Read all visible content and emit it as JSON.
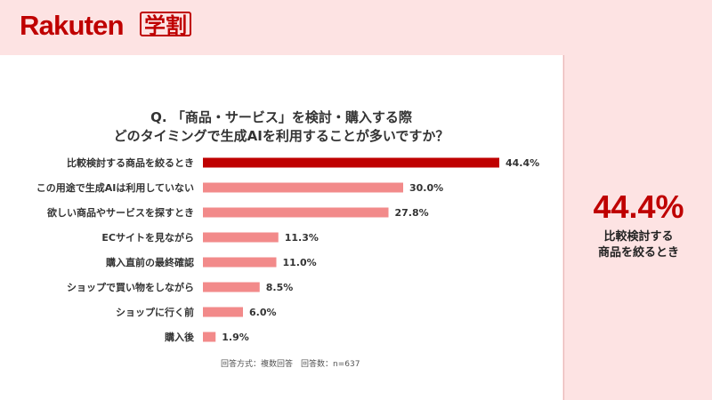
{
  "brand": {
    "logo_text": "Rakuten",
    "logo_badge": "学割",
    "accent": "#bf0000"
  },
  "question": {
    "line1": "Q. 「商品・サービス」を検討・購入する際",
    "line2": "どのタイミングで生成AIを利用することが多いですか？"
  },
  "footnote": "回答方式：複数回答　回答数：n=637",
  "highlight": {
    "value": "44.4%",
    "label_line1": "比較検討する",
    "label_line2": "商品を絞るとき"
  },
  "colors": {
    "top_bar": "#bf0000",
    "bar": "#f28a8a",
    "background": "#fde3e3"
  },
  "chart_data": {
    "type": "bar",
    "orientation": "horizontal",
    "title": "Q. 「商品・サービス」を検討・購入する際 どのタイミングで生成AIを利用することが多いですか？",
    "categories": [
      "比較検討する商品を絞るとき",
      "この用途で生成AIは利用していない",
      "欲しい商品やサービスを探すとき",
      "ECサイトを見ながら",
      "購入直前の最終確認",
      "ショップで買い物をしながら",
      "ショップに行く前",
      "購入後"
    ],
    "values": [
      44.4,
      30.0,
      27.8,
      11.3,
      11.0,
      8.5,
      6.0,
      1.9
    ],
    "value_labels": [
      "44.4%",
      "30.0%",
      "27.8%",
      "11.3%",
      "11.0%",
      "8.5%",
      "6.0%",
      "1.9%"
    ],
    "highlighted_index": 0,
    "grid": false,
    "legend": "none"
  }
}
